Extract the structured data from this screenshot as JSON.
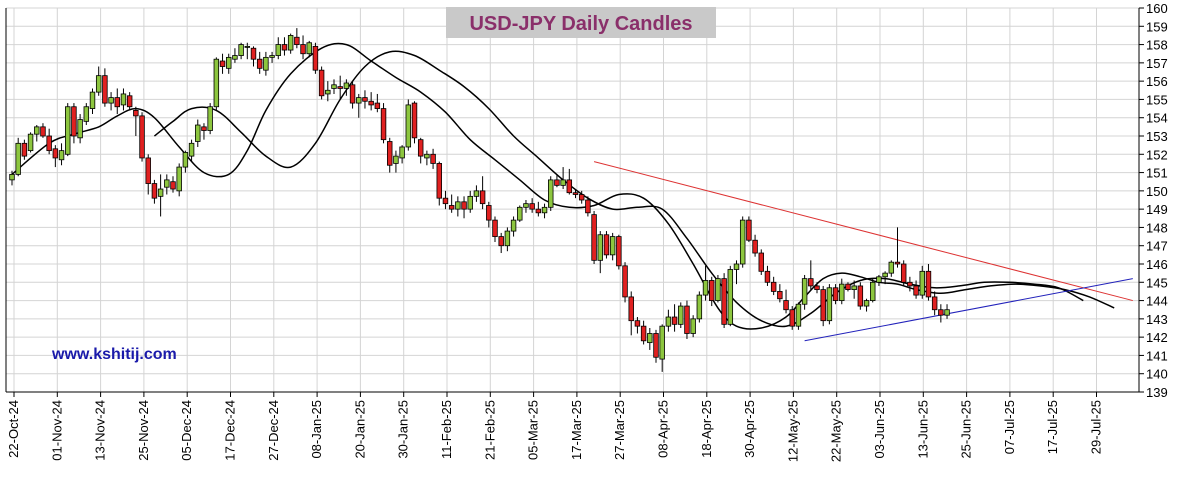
{
  "chart_data": {
    "type": "candlestick",
    "title": "USD-JPY Daily Candles",
    "watermark": "www.kshitij.com",
    "ylim": [
      139,
      160
    ],
    "y_ticks": [
      139,
      140,
      141,
      142,
      143,
      144,
      145,
      146,
      147,
      148,
      149,
      150,
      151,
      152,
      153,
      154,
      155,
      156,
      157,
      158,
      159,
      160
    ],
    "x_ticks": [
      "22-Oct-24",
      "01-Nov-24",
      "13-Nov-24",
      "25-Nov-24",
      "05-Dec-24",
      "17-Dec-24",
      "27-Dec-24",
      "08-Jan-25",
      "20-Jan-25",
      "30-Jan-25",
      "11-Feb-25",
      "21-Feb-25",
      "05-Mar-25",
      "17-Mar-25",
      "27-Mar-25",
      "08-Apr-25",
      "18-Apr-25",
      "30-Apr-25",
      "12-May-25",
      "22-May-25",
      "03-Jun-25",
      "13-Jun-25",
      "25-Jun-25",
      "07-Jul-25",
      "17-Jul-25",
      "29-Jul-25"
    ],
    "grid": true,
    "colors": {
      "up": "#8dc63f",
      "down": "#e02020",
      "moving_average": "#000000",
      "resistance": "#dd3333",
      "support": "#2222bb"
    },
    "candles": [
      [
        150.6,
        151.1,
        150.3,
        150.9
      ],
      [
        150.9,
        152.9,
        150.8,
        152.6
      ],
      [
        152.6,
        152.8,
        151.7,
        151.9
      ],
      [
        152.2,
        153.2,
        152.1,
        153.1
      ],
      [
        153.1,
        153.6,
        152.7,
        153.5
      ],
      [
        153.5,
        153.7,
        152.9,
        153.0
      ],
      [
        153.0,
        153.4,
        152.0,
        152.2
      ],
      [
        152.3,
        152.5,
        151.3,
        151.8
      ],
      [
        151.7,
        152.6,
        151.4,
        152.2
      ],
      [
        152.0,
        154.8,
        151.9,
        154.6
      ],
      [
        154.6,
        154.8,
        152.6,
        153.0
      ],
      [
        152.9,
        154.2,
        152.6,
        153.9
      ],
      [
        153.8,
        154.8,
        153.6,
        154.6
      ],
      [
        154.5,
        155.6,
        154.2,
        155.4
      ],
      [
        155.4,
        156.8,
        155.2,
        156.3
      ],
      [
        156.3,
        156.7,
        154.6,
        154.8
      ],
      [
        154.8,
        155.4,
        154.4,
        155.1
      ],
      [
        155.1,
        155.6,
        154.2,
        154.6
      ],
      [
        154.7,
        155.6,
        154.4,
        155.3
      ],
      [
        155.2,
        155.4,
        154.4,
        154.6
      ],
      [
        154.4,
        154.6,
        153.0,
        154.1
      ],
      [
        154.1,
        154.3,
        151.6,
        151.8
      ],
      [
        151.8,
        152.0,
        149.8,
        150.4
      ],
      [
        150.4,
        150.6,
        149.3,
        149.6
      ],
      [
        149.7,
        150.9,
        148.6,
        150.1
      ],
      [
        150.2,
        150.9,
        149.8,
        150.6
      ],
      [
        150.5,
        150.8,
        149.9,
        150.1
      ],
      [
        150.0,
        151.5,
        149.7,
        151.3
      ],
      [
        151.3,
        152.2,
        151.0,
        152.1
      ],
      [
        151.9,
        152.8,
        151.6,
        152.6
      ],
      [
        152.7,
        153.9,
        152.4,
        153.6
      ],
      [
        153.5,
        153.7,
        152.8,
        153.3
      ],
      [
        153.3,
        154.8,
        153.1,
        154.6
      ],
      [
        154.6,
        157.3,
        154.4,
        157.2
      ],
      [
        157.1,
        157.5,
        156.4,
        156.8
      ],
      [
        156.7,
        157.5,
        156.4,
        157.3
      ],
      [
        157.2,
        157.8,
        157.0,
        157.4
      ],
      [
        157.4,
        158.1,
        157.2,
        158.0
      ],
      [
        157.9,
        158.1,
        157.2,
        157.9
      ],
      [
        157.8,
        157.9,
        156.8,
        157.2
      ],
      [
        157.2,
        157.6,
        156.4,
        156.7
      ],
      [
        156.6,
        157.6,
        156.3,
        157.3
      ],
      [
        157.3,
        157.6,
        157.0,
        157.4
      ],
      [
        157.4,
        158.4,
        157.2,
        158.0
      ],
      [
        158.0,
        158.4,
        157.4,
        157.7
      ],
      [
        157.7,
        158.6,
        157.5,
        158.5
      ],
      [
        158.4,
        158.9,
        157.8,
        158.0
      ],
      [
        158.0,
        158.5,
        157.2,
        157.5
      ],
      [
        157.5,
        158.2,
        157.3,
        158.1
      ],
      [
        157.9,
        158.1,
        156.4,
        156.6
      ],
      [
        156.6,
        156.8,
        155.0,
        155.2
      ],
      [
        155.3,
        156.0,
        154.9,
        155.5
      ],
      [
        155.6,
        156.1,
        155.3,
        155.8
      ],
      [
        155.7,
        156.3,
        155.0,
        155.6
      ],
      [
        155.6,
        156.1,
        155.2,
        155.9
      ],
      [
        155.8,
        156.0,
        154.5,
        154.8
      ],
      [
        154.8,
        155.3,
        154.0,
        155.1
      ],
      [
        155.1,
        155.5,
        154.5,
        154.9
      ],
      [
        154.9,
        155.4,
        154.4,
        154.7
      ],
      [
        154.8,
        155.3,
        154.3,
        154.5
      ],
      [
        154.5,
        154.8,
        152.6,
        152.8
      ],
      [
        152.7,
        152.9,
        151.0,
        151.4
      ],
      [
        151.5,
        152.2,
        151.0,
        151.9
      ],
      [
        151.8,
        152.5,
        151.5,
        152.4
      ],
      [
        152.4,
        155.0,
        152.2,
        154.7
      ],
      [
        154.8,
        154.9,
        152.6,
        152.9
      ],
      [
        152.8,
        152.9,
        151.5,
        151.9
      ],
      [
        151.8,
        152.2,
        151.4,
        152.0
      ],
      [
        152.0,
        152.3,
        151.2,
        151.5
      ],
      [
        151.5,
        151.6,
        149.2,
        149.6
      ],
      [
        149.6,
        150.0,
        149.0,
        149.3
      ],
      [
        149.2,
        149.8,
        148.8,
        149.0
      ],
      [
        149.0,
        149.7,
        148.6,
        149.4
      ],
      [
        149.4,
        149.7,
        148.5,
        149.0
      ],
      [
        149.0,
        150.0,
        148.8,
        149.7
      ],
      [
        149.7,
        150.3,
        149.4,
        150.0
      ],
      [
        150.0,
        150.8,
        149.0,
        149.3
      ],
      [
        149.2,
        149.4,
        148.0,
        148.4
      ],
      [
        148.4,
        148.6,
        147.2,
        147.5
      ],
      [
        147.5,
        147.7,
        146.6,
        147.0
      ],
      [
        147.0,
        148.0,
        146.7,
        147.8
      ],
      [
        147.8,
        148.6,
        147.5,
        148.4
      ],
      [
        148.4,
        149.2,
        148.3,
        149.1
      ],
      [
        149.1,
        149.5,
        148.8,
        149.3
      ],
      [
        149.3,
        149.6,
        148.8,
        149.0
      ],
      [
        149.0,
        149.4,
        148.6,
        148.8
      ],
      [
        148.8,
        149.3,
        148.5,
        149.1
      ],
      [
        149.1,
        150.8,
        148.9,
        150.6
      ],
      [
        150.6,
        150.9,
        150.2,
        150.3
      ],
      [
        150.3,
        151.3,
        150.1,
        150.6
      ],
      [
        150.6,
        151.2,
        149.8,
        149.9
      ],
      [
        149.9,
        150.1,
        149.6,
        149.8
      ],
      [
        149.8,
        150.0,
        149.3,
        149.5
      ],
      [
        149.5,
        149.7,
        148.6,
        148.8
      ],
      [
        148.7,
        148.9,
        146.0,
        146.2
      ],
      [
        146.2,
        147.8,
        145.5,
        147.6
      ],
      [
        147.6,
        147.8,
        146.3,
        146.5
      ],
      [
        146.5,
        147.7,
        146.2,
        147.5
      ],
      [
        147.5,
        147.6,
        145.7,
        145.9
      ],
      [
        145.9,
        146.1,
        143.9,
        144.2
      ],
      [
        144.2,
        144.5,
        142.1,
        142.9
      ],
      [
        142.9,
        143.1,
        142.2,
        142.6
      ],
      [
        142.6,
        142.9,
        141.6,
        141.8
      ],
      [
        141.7,
        142.5,
        141.3,
        142.2
      ],
      [
        142.2,
        142.4,
        140.6,
        140.9
      ],
      [
        140.8,
        142.7,
        140.1,
        142.6
      ],
      [
        142.6,
        143.5,
        142.3,
        143.1
      ],
      [
        143.1,
        143.8,
        142.3,
        142.7
      ],
      [
        142.7,
        143.9,
        142.5,
        143.7
      ],
      [
        143.7,
        144.0,
        141.9,
        142.2
      ],
      [
        142.2,
        143.2,
        142.0,
        143.0
      ],
      [
        143.0,
        144.5,
        142.8,
        144.3
      ],
      [
        144.3,
        145.9,
        144.0,
        145.1
      ],
      [
        145.1,
        145.3,
        143.7,
        144.0
      ],
      [
        144.0,
        145.4,
        143.9,
        145.2
      ],
      [
        145.2,
        145.5,
        142.5,
        142.7
      ],
      [
        142.7,
        145.9,
        142.6,
        145.7
      ],
      [
        145.7,
        146.2,
        144.9,
        146.0
      ],
      [
        146.0,
        148.6,
        145.8,
        148.4
      ],
      [
        148.4,
        148.6,
        147.2,
        147.3
      ],
      [
        147.3,
        147.6,
        146.4,
        146.6
      ],
      [
        146.6,
        146.8,
        145.4,
        145.6
      ],
      [
        145.6,
        145.9,
        144.8,
        145.0
      ],
      [
        145.0,
        145.3,
        144.3,
        144.5
      ],
      [
        144.5,
        144.9,
        143.9,
        144.1
      ],
      [
        144.0,
        144.6,
        143.3,
        143.5
      ],
      [
        143.5,
        143.7,
        142.4,
        142.6
      ],
      [
        142.6,
        143.9,
        142.4,
        143.8
      ],
      [
        143.8,
        145.4,
        143.5,
        145.2
      ],
      [
        145.2,
        146.2,
        144.6,
        144.8
      ],
      [
        144.8,
        145.0,
        144.4,
        144.6
      ],
      [
        144.6,
        144.8,
        142.6,
        142.9
      ],
      [
        142.9,
        144.9,
        142.7,
        144.7
      ],
      [
        144.7,
        144.9,
        143.8,
        144.0
      ],
      [
        144.0,
        145.2,
        143.8,
        144.9
      ],
      [
        144.9,
        145.0,
        144.5,
        144.6
      ],
      [
        144.6,
        145.1,
        144.1,
        144.8
      ],
      [
        144.8,
        145.0,
        143.5,
        143.7
      ],
      [
        143.7,
        144.1,
        143.4,
        144.0
      ],
      [
        144.0,
        145.2,
        143.9,
        145.0
      ],
      [
        145.0,
        145.4,
        144.8,
        145.3
      ],
      [
        145.3,
        145.6,
        144.9,
        145.5
      ],
      [
        145.5,
        146.2,
        145.3,
        146.1
      ],
      [
        146.1,
        148.0,
        145.8,
        146.0
      ],
      [
        146.0,
        146.2,
        144.8,
        145.0
      ],
      [
        145.0,
        145.3,
        144.5,
        144.8
      ],
      [
        144.8,
        145.1,
        144.1,
        144.3
      ],
      [
        144.3,
        145.9,
        144.1,
        145.6
      ],
      [
        145.6,
        146.0,
        144.0,
        144.2
      ],
      [
        144.2,
        144.5,
        143.2,
        143.5
      ],
      [
        143.5,
        143.8,
        142.8,
        143.2
      ],
      [
        143.2,
        143.8,
        143.0,
        143.5
      ]
    ],
    "moving_averages": [
      {
        "name": "",
        "values": [
          [
            0,
            150.9
          ],
          [
            6,
            152.6
          ],
          [
            10,
            153.1
          ],
          [
            14,
            153.5
          ],
          [
            17,
            154.1
          ],
          [
            20,
            154.5
          ],
          [
            23,
            154.0
          ],
          [
            27,
            152.4
          ],
          [
            31,
            151.0
          ],
          [
            35,
            150.9
          ],
          [
            38,
            152.2
          ],
          [
            41,
            154.4
          ],
          [
            45,
            156.4
          ],
          [
            50,
            157.8
          ],
          [
            54,
            158.0
          ],
          [
            58,
            157.1
          ],
          [
            62,
            156.2
          ],
          [
            66,
            155.4
          ],
          [
            70,
            154.3
          ],
          [
            74,
            152.8
          ],
          [
            78,
            151.7
          ],
          [
            82,
            150.6
          ],
          [
            86,
            149.5
          ],
          [
            90,
            149.1
          ],
          [
            94,
            149.2
          ],
          [
            98,
            149.8
          ],
          [
            102,
            149.6
          ],
          [
            106,
            148.2
          ],
          [
            110,
            146.0
          ],
          [
            114,
            143.6
          ],
          [
            117,
            142.6
          ],
          [
            121,
            142.5
          ],
          [
            125,
            143.1
          ],
          [
            128,
            144.2
          ],
          [
            131,
            145.2
          ],
          [
            134,
            145.5
          ],
          [
            137,
            145.3
          ],
          [
            140,
            145.0
          ],
          [
            143,
            144.9
          ],
          [
            146,
            144.6
          ],
          [
            150,
            144.4
          ],
          [
            154,
            144.6
          ],
          [
            158,
            144.8
          ],
          [
            162,
            144.9
          ],
          [
            166,
            144.8
          ],
          [
            170,
            144.6
          ],
          [
            174,
            144.2
          ],
          [
            178,
            143.6
          ]
        ]
      },
      {
        "name": "",
        "values": [
          [
            23,
            153.0
          ],
          [
            26,
            153.8
          ],
          [
            29,
            154.5
          ],
          [
            33,
            154.4
          ],
          [
            37,
            153.2
          ],
          [
            41,
            151.9
          ],
          [
            45,
            151.3
          ],
          [
            49,
            152.6
          ],
          [
            53,
            155.0
          ],
          [
            57,
            156.8
          ],
          [
            61,
            157.6
          ],
          [
            65,
            157.4
          ],
          [
            69,
            156.6
          ],
          [
            73,
            155.7
          ],
          [
            77,
            154.5
          ],
          [
            81,
            153.0
          ],
          [
            85,
            151.8
          ],
          [
            89,
            150.6
          ],
          [
            93,
            149.6
          ],
          [
            97,
            149.0
          ],
          [
            101,
            149.1
          ],
          [
            105,
            149.0
          ],
          [
            109,
            147.4
          ],
          [
            113,
            145.5
          ],
          [
            117,
            143.9
          ],
          [
            121,
            142.9
          ],
          [
            125,
            142.6
          ],
          [
            129,
            143.3
          ],
          [
            133,
            144.4
          ],
          [
            137,
            145.1
          ],
          [
            141,
            145.2
          ],
          [
            145,
            144.9
          ],
          [
            149,
            144.7
          ],
          [
            153,
            144.8
          ],
          [
            157,
            145.0
          ],
          [
            161,
            145.0
          ],
          [
            165,
            144.9
          ],
          [
            169,
            144.7
          ],
          [
            173,
            144.0
          ]
        ]
      }
    ],
    "trendlines": [
      {
        "type": "resistance",
        "from": [
          94,
          151.6
        ],
        "to": [
          181,
          144.0
        ]
      },
      {
        "type": "support",
        "from": [
          128,
          141.8
        ],
        "to": [
          181,
          145.2
        ]
      }
    ]
  }
}
